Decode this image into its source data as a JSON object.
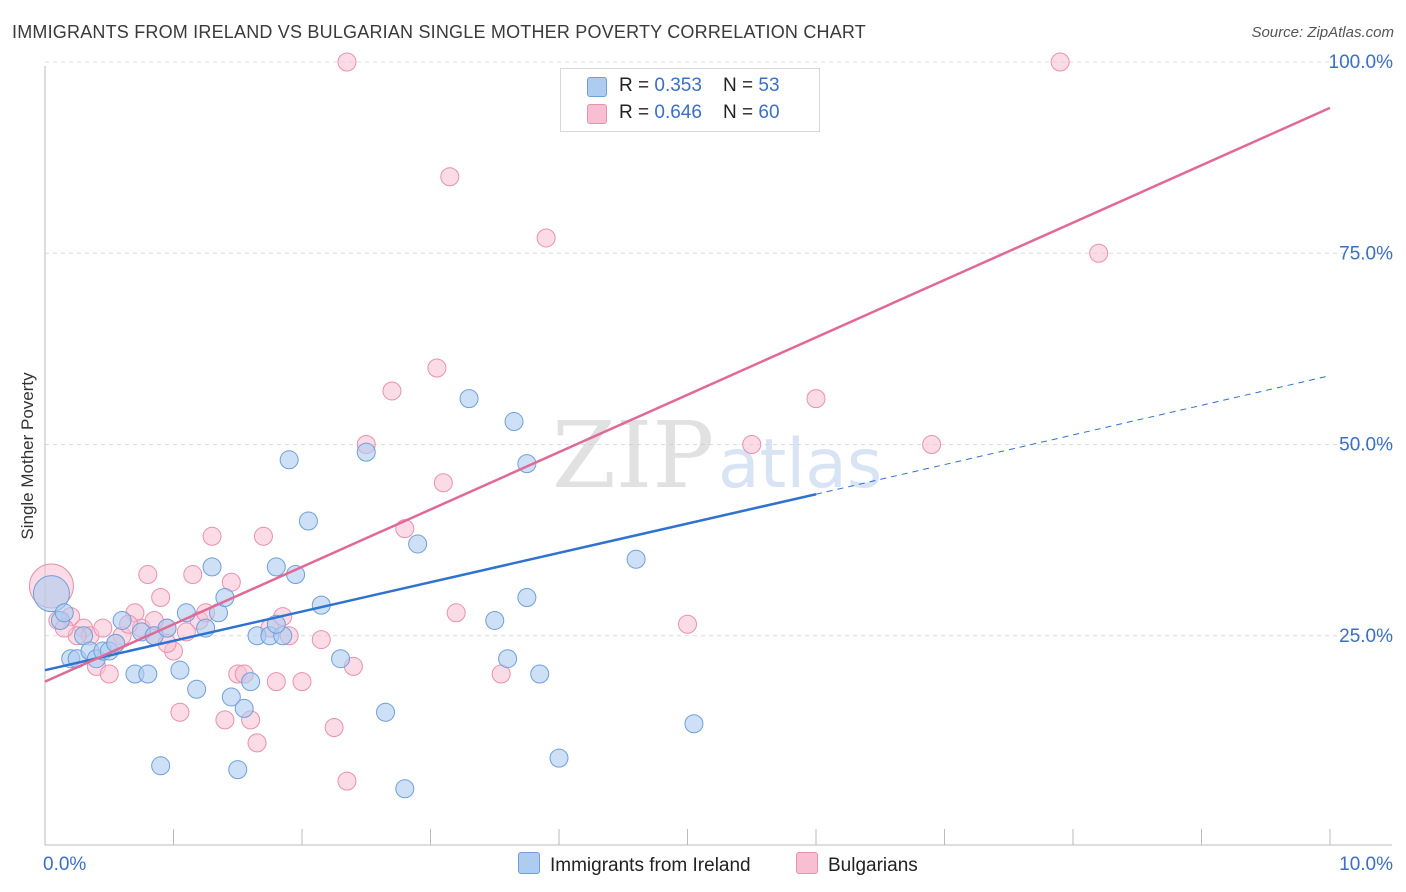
{
  "header": {
    "title": "IMMIGRANTS FROM IRELAND VS BULGARIAN SINGLE MOTHER POVERTY CORRELATION CHART",
    "source": "Source: ZipAtlas.com"
  },
  "watermark": {
    "zip": "ZIP",
    "atlas": "atlas"
  },
  "colors": {
    "blue_fill": "#aecbf0",
    "blue_stroke": "#6f9fd9",
    "blue_line": "#2f72d0",
    "pink_fill": "#f7bfd1",
    "pink_stroke": "#e890ad",
    "pink_line": "#e06a95",
    "tick_label": "#3a6fc4",
    "grid": "#dcdcdc"
  },
  "legend": {
    "rows": [
      {
        "series": "Immigrants from Ireland",
        "r_label": "R = ",
        "r_value": "0.353",
        "n_label": "N = ",
        "n_value": "53"
      },
      {
        "series": "Bulgarians",
        "r_label": "R = ",
        "r_value": "0.646",
        "n_label": "N = ",
        "n_value": "60"
      }
    ]
  },
  "chart_data": {
    "type": "scatter",
    "title": "IMMIGRANTS FROM IRELAND VS BULGARIAN SINGLE MOTHER POVERTY CORRELATION CHART",
    "xlabel": "",
    "ylabel": "Single Mother Poverty",
    "xlim": [
      0,
      10
    ],
    "ylim": [
      0,
      100
    ],
    "x_tick_labels": [
      "0.0%",
      "10.0%"
    ],
    "y_ticks": [
      25,
      50,
      75,
      100
    ],
    "y_tick_labels": [
      "25.0%",
      "50.0%",
      "75.0%",
      "100.0%"
    ],
    "series": [
      {
        "name": "Immigrants from Ireland",
        "color": "#aecbf0",
        "points": [
          [
            0.05,
            30.5
          ],
          [
            0.12,
            27
          ],
          [
            0.15,
            28
          ],
          [
            0.2,
            22
          ],
          [
            0.25,
            22
          ],
          [
            0.3,
            25
          ],
          [
            0.35,
            23
          ],
          [
            0.4,
            22
          ],
          [
            0.45,
            23
          ],
          [
            0.5,
            23
          ],
          [
            0.55,
            24
          ],
          [
            0.6,
            27
          ],
          [
            0.7,
            20
          ],
          [
            0.75,
            25.5
          ],
          [
            0.8,
            20
          ],
          [
            0.85,
            25
          ],
          [
            0.95,
            26
          ],
          [
            1.05,
            20.5
          ],
          [
            1.1,
            28
          ],
          [
            1.18,
            18
          ],
          [
            1.25,
            26
          ],
          [
            1.3,
            34
          ],
          [
            1.35,
            28
          ],
          [
            1.4,
            30
          ],
          [
            1.45,
            17
          ],
          [
            1.55,
            15.5
          ],
          [
            1.6,
            19
          ],
          [
            1.65,
            25
          ],
          [
            1.75,
            25
          ],
          [
            1.8,
            34
          ],
          [
            1.85,
            25
          ],
          [
            1.9,
            48
          ],
          [
            1.95,
            33
          ],
          [
            2.05,
            40
          ],
          [
            2.15,
            29
          ],
          [
            2.3,
            22
          ],
          [
            2.5,
            49
          ],
          [
            2.65,
            15
          ],
          [
            2.8,
            5
          ],
          [
            2.9,
            37
          ],
          [
            3.3,
            56
          ],
          [
            3.5,
            27
          ],
          [
            3.6,
            22
          ],
          [
            3.65,
            53
          ],
          [
            3.75,
            30
          ],
          [
            3.75,
            47.5
          ],
          [
            3.85,
            20
          ],
          [
            4.0,
            9
          ],
          [
            4.6,
            35
          ],
          [
            5.05,
            13.5
          ],
          [
            0.9,
            8
          ],
          [
            1.5,
            7.5
          ],
          [
            1.8,
            26.5
          ]
        ]
      },
      {
        "name": "Bulgarians",
        "color": "#f7bfd1",
        "points": [
          [
            0.05,
            31.5
          ],
          [
            0.1,
            27
          ],
          [
            0.2,
            27.5
          ],
          [
            0.3,
            26
          ],
          [
            0.35,
            25
          ],
          [
            0.4,
            21
          ],
          [
            0.45,
            26
          ],
          [
            0.5,
            20
          ],
          [
            0.6,
            25
          ],
          [
            0.7,
            28
          ],
          [
            0.75,
            26
          ],
          [
            0.8,
            33
          ],
          [
            0.85,
            25
          ],
          [
            0.9,
            30
          ],
          [
            0.95,
            26
          ],
          [
            1.0,
            23
          ],
          [
            1.05,
            15
          ],
          [
            1.15,
            33
          ],
          [
            1.2,
            27
          ],
          [
            1.3,
            38
          ],
          [
            1.4,
            14
          ],
          [
            1.45,
            32
          ],
          [
            1.5,
            20
          ],
          [
            1.6,
            14
          ],
          [
            1.65,
            11
          ],
          [
            1.7,
            38
          ],
          [
            1.75,
            26
          ],
          [
            1.8,
            19
          ],
          [
            1.9,
            25
          ],
          [
            2.0,
            19
          ],
          [
            2.25,
            13
          ],
          [
            2.35,
            6
          ],
          [
            2.4,
            21
          ],
          [
            2.5,
            50
          ],
          [
            2.7,
            57
          ],
          [
            2.8,
            39
          ],
          [
            3.05,
            60
          ],
          [
            3.1,
            45
          ],
          [
            3.15,
            85
          ],
          [
            3.2,
            28
          ],
          [
            3.55,
            20
          ],
          [
            3.9,
            77
          ],
          [
            5.0,
            26.5
          ],
          [
            5.5,
            50
          ],
          [
            6.0,
            56
          ],
          [
            6.9,
            50
          ],
          [
            7.9,
            100
          ],
          [
            8.2,
            75
          ],
          [
            2.35,
            100
          ],
          [
            0.55,
            24
          ],
          [
            1.1,
            25.5
          ],
          [
            1.25,
            28
          ],
          [
            0.65,
            26.5
          ],
          [
            0.95,
            24
          ],
          [
            1.55,
            20
          ],
          [
            1.85,
            27.5
          ],
          [
            2.15,
            24.5
          ],
          [
            0.25,
            25
          ],
          [
            0.15,
            26
          ],
          [
            0.85,
            27
          ]
        ]
      }
    ],
    "trend_lines": [
      {
        "series": "Immigrants from Ireland",
        "x0": 0,
        "y0": 20.5,
        "x1": 6.0,
        "y1": 43.5,
        "dashed_to_x": 10,
        "dashed_to_y": 59
      },
      {
        "series": "Bulgarians",
        "x0": 0,
        "y0": 19,
        "x1": 10,
        "y1": 94
      }
    ]
  }
}
